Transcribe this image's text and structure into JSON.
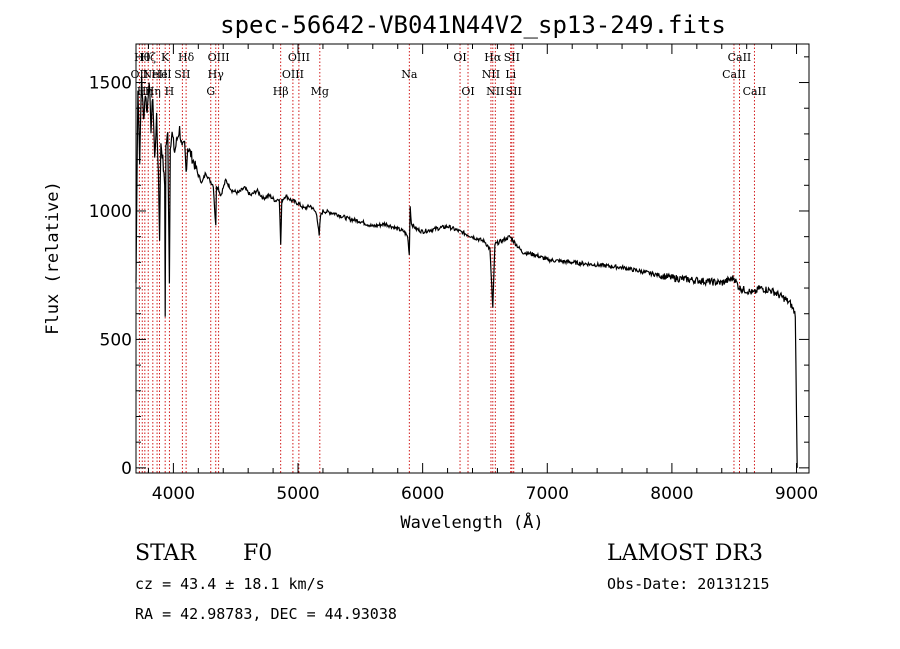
{
  "chart_data": {
    "type": "line",
    "title": "spec-56642-VB041N44V2_sp13-249.fits",
    "xlabel": "Wavelength (Å)",
    "ylabel": "Flux (relative)",
    "xlim": [
      3700,
      9100
    ],
    "ylim": [
      -20,
      1650
    ],
    "xticks": [
      4000,
      5000,
      6000,
      7000,
      8000,
      9000
    ],
    "yticks": [
      0,
      500,
      1000,
      1500
    ],
    "xtick_labels": [
      "4000",
      "5000",
      "6000",
      "7000",
      "8000",
      "9000"
    ],
    "ytick_labels": [
      "0",
      "500",
      "1000",
      "1500"
    ],
    "series": [
      {
        "name": "spectrum",
        "x": [
          3700,
          3715,
          3730,
          3745,
          3760,
          3775,
          3790,
          3805,
          3820,
          3835,
          3850,
          3865,
          3880,
          3889,
          3900,
          3915,
          3930,
          3934,
          3940,
          3955,
          3968,
          3975,
          3990,
          4010,
          4030,
          4050,
          4070,
          4090,
          4102,
          4115,
          4140,
          4170,
          4200,
          4230,
          4260,
          4290,
          4320,
          4340,
          4345,
          4360,
          4380,
          4420,
          4470,
          4520,
          4570,
          4620,
          4670,
          4720,
          4770,
          4820,
          4850,
          4861,
          4870,
          4900,
          4950,
          5000,
          5050,
          5100,
          5150,
          5170,
          5180,
          5200,
          5300,
          5400,
          5500,
          5600,
          5700,
          5800,
          5850,
          5880,
          5893,
          5900,
          5910,
          5950,
          6000,
          6100,
          6200,
          6300,
          6400,
          6500,
          6540,
          6563,
          6580,
          6620,
          6700,
          6800,
          6900,
          7000,
          7200,
          7400,
          7600,
          7800,
          8000,
          8200,
          8400,
          8498,
          8542,
          8600,
          8662,
          8700,
          8800,
          8900,
          8950,
          8990,
          9000,
          9005
        ],
        "y": [
          720,
          1480,
          1200,
          1530,
          1350,
          1460,
          1380,
          1520,
          1320,
          1450,
          1200,
          1360,
          1150,
          900,
          1270,
          1200,
          1100,
          600,
          1250,
          1300,
          720,
          1260,
          1300,
          1230,
          1280,
          1320,
          1240,
          1260,
          1150,
          1250,
          1220,
          1180,
          1140,
          1110,
          1150,
          1120,
          1100,
          940,
          1100,
          1090,
          1060,
          1120,
          1080,
          1070,
          1090,
          1060,
          1080,
          1050,
          1060,
          1040,
          1050,
          870,
          1040,
          1060,
          1040,
          1030,
          1010,
          1020,
          990,
          900,
          980,
          1000,
          990,
          970,
          960,
          940,
          950,
          930,
          920,
          900,
          830,
          1020,
          950,
          930,
          920,
          930,
          940,
          920,
          900,
          880,
          850,
          620,
          870,
          880,
          900,
          840,
          830,
          810,
          800,
          790,
          780,
          760,
          740,
          730,
          720,
          740,
          700,
          690,
          680,
          700,
          690,
          660,
          640,
          600,
          200,
          0
        ]
      }
    ],
    "lines": [
      {
        "w": 3727,
        "label": "OII",
        "row": 2
      },
      {
        "w": 3750,
        "label": "Hθ",
        "row": 1
      },
      {
        "w": 3771,
        "label": "Hη",
        "row": 3
      },
      {
        "w": 3798,
        "label": "Hζ",
        "row": 1
      },
      {
        "w": 3835,
        "label": "Hη",
        "row": 3
      },
      {
        "w": 3869,
        "label": "NeIII",
        "row": 2
      },
      {
        "w": 3889,
        "label": "He",
        "row": 2
      },
      {
        "w": 3934,
        "label": "K",
        "row": 1
      },
      {
        "w": 3968,
        "label": "H",
        "row": 3
      },
      {
        "w": 4072,
        "label": "SII",
        "row": 2
      },
      {
        "w": 4102,
        "label": "Hδ",
        "row": 1
      },
      {
        "w": 4300,
        "label": "G",
        "row": 3
      },
      {
        "w": 4340,
        "label": "Hγ",
        "row": 2
      },
      {
        "w": 4363,
        "label": "OIII",
        "row": 1
      },
      {
        "w": 4861,
        "label": "Hβ",
        "row": 3
      },
      {
        "w": 4959,
        "label": "OIII",
        "row": 2
      },
      {
        "w": 5007,
        "label": "OIII",
        "row": 1
      },
      {
        "w": 5175,
        "label": "Mg",
        "row": 3
      },
      {
        "w": 5893,
        "label": "Na",
        "row": 2
      },
      {
        "w": 6300,
        "label": "OI",
        "row": 1
      },
      {
        "w": 6364,
        "label": "OI",
        "row": 3
      },
      {
        "w": 6548,
        "label": "NII",
        "row": 2
      },
      {
        "w": 6563,
        "label": "Hα",
        "row": 1
      },
      {
        "w": 6583,
        "label": "NII",
        "row": 3
      },
      {
        "w": 6707,
        "label": "Li",
        "row": 2
      },
      {
        "w": 6716,
        "label": "SII",
        "row": 1
      },
      {
        "w": 6731,
        "label": "SII",
        "row": 3
      },
      {
        "w": 8498,
        "label": "CaII",
        "row": 2
      },
      {
        "w": 8542,
        "label": "CaII",
        "row": 1
      },
      {
        "w": 8662,
        "label": "CaII",
        "row": 3
      }
    ]
  },
  "info": {
    "class": "STAR",
    "subclass": "F0",
    "survey": "LAMOST DR3",
    "cz": "cz = 43.4 ± 18.1 km/s",
    "obsdate": "Obs-Date: 20131215",
    "radec": "RA =  42.98783, DEC =  44.93038"
  },
  "colors": {
    "line_marker": "#cc0000",
    "spectrum": "#000000",
    "axis": "#000000"
  }
}
